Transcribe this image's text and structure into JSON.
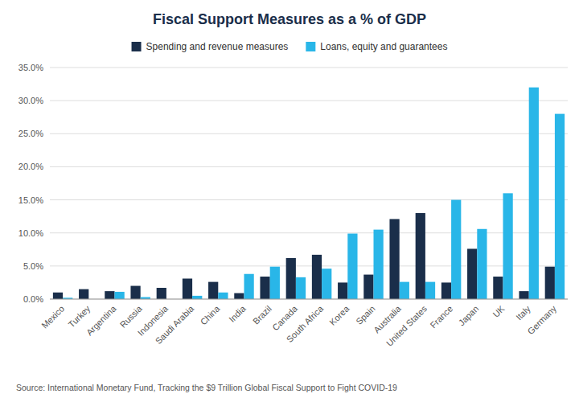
{
  "chart_data": {
    "type": "bar",
    "title": "Fiscal Support Measures as a % of GDP",
    "annotations": [
      "Source: International Monetary Fund, Tracking the $9 Trillion Global Fiscal Support to Fight COVID-19"
    ],
    "categories": [
      "Mexico",
      "Turkey",
      "Argentina",
      "Russia",
      "Indonesia",
      "Saudi Arabia",
      "China",
      "India",
      "Brazil",
      "Canada",
      "South Africa",
      "Korea",
      "Spain",
      "Australia",
      "United States",
      "France",
      "Japan",
      "UK",
      "Italy",
      "Germany"
    ],
    "series": [
      {
        "name": "Spending and revenue measures",
        "color": "#1a2e4a",
        "values": [
          1.0,
          1.5,
          1.2,
          2.0,
          1.7,
          3.1,
          2.6,
          0.9,
          3.4,
          6.2,
          6.7,
          2.5,
          3.7,
          12.1,
          13.0,
          2.5,
          7.6,
          3.4,
          1.2,
          4.9
        ]
      },
      {
        "name": "Loans, equity and guarantees",
        "color": "#29b6e8",
        "values": [
          0.2,
          0.0,
          1.1,
          0.3,
          0.0,
          0.5,
          1.0,
          3.8,
          4.9,
          3.3,
          4.6,
          9.9,
          10.5,
          2.6,
          2.6,
          15.0,
          10.6,
          16.0,
          32.0,
          28.0
        ]
      }
    ],
    "ylim": [
      0,
      35
    ],
    "yticks": [
      {
        "value": 0,
        "label": "0.0%"
      },
      {
        "value": 5,
        "label": "5.0%"
      },
      {
        "value": 10,
        "label": "10.0%"
      },
      {
        "value": 15,
        "label": "15.0%"
      },
      {
        "value": 20,
        "label": "20.0%"
      },
      {
        "value": 25,
        "label": "25.0%"
      },
      {
        "value": 30,
        "label": "30.0%"
      },
      {
        "value": 35,
        "label": "35.0%"
      }
    ],
    "grid": true,
    "legend": "top"
  }
}
